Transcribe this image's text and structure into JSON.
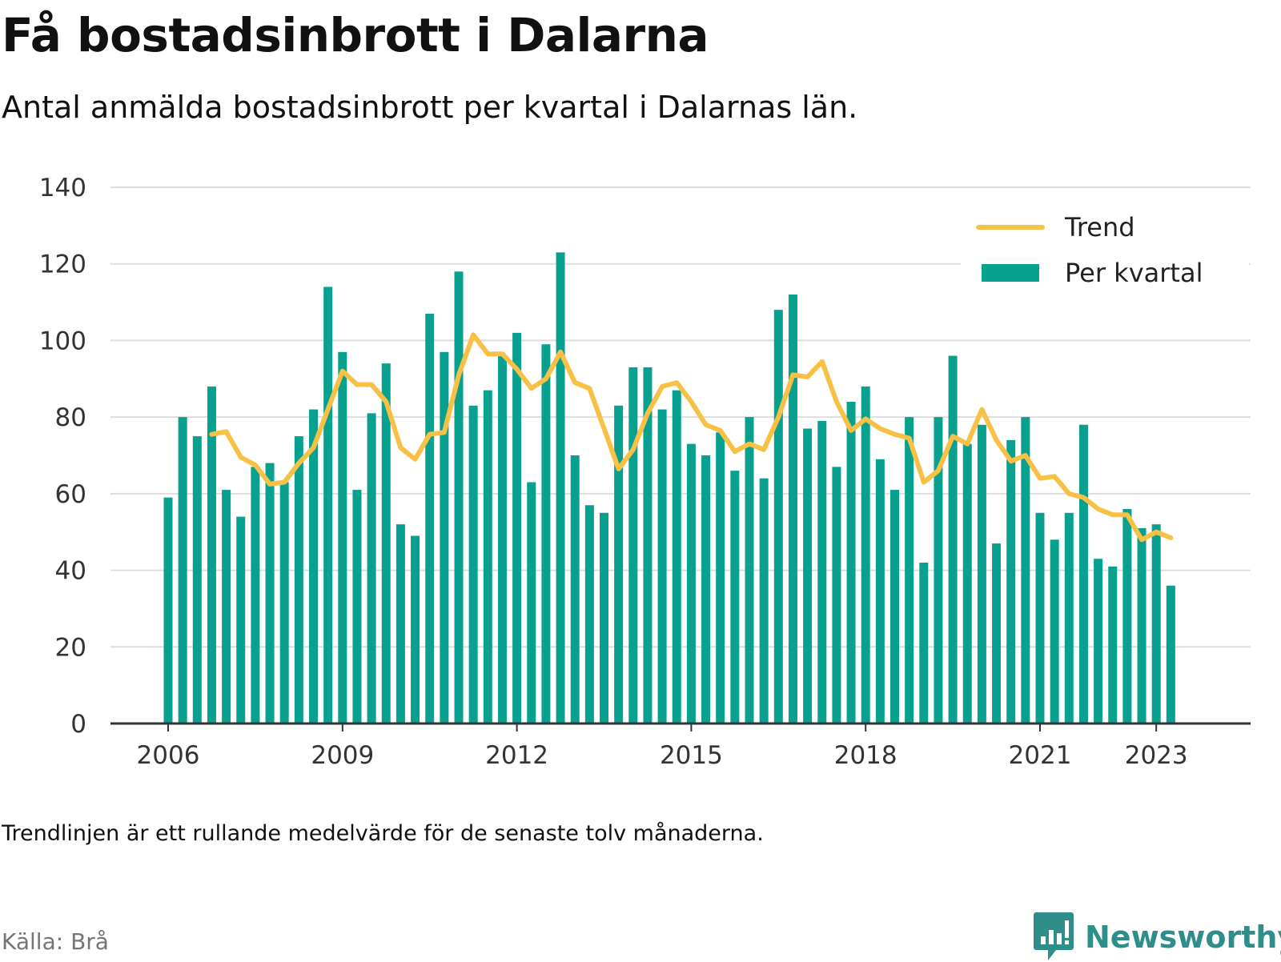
{
  "title": "Få bostadsinbrott i Dalarna",
  "subtitle": "Antal anmälda bostadsinbrott per kvartal i Dalarnas län.",
  "note": "Trendlinjen är ett rullande medelvärde för de senaste tolv månaderna.",
  "source": "Källa: Brå",
  "brand": {
    "name": "Newsworthy",
    "icon": "newsworthy-logo-icon",
    "color": "#2e8e8a"
  },
  "colors": {
    "bars": "#08a08e",
    "trend": "#f8c146",
    "grid": "#dddddd",
    "axis": "#333333"
  },
  "chart_data": {
    "type": "bar",
    "title": "Få bostadsinbrott i Dalarna",
    "subtitle": "Antal anmälda bostadsinbrott per kvartal i Dalarnas län.",
    "xlabel": "",
    "ylabel": "",
    "ylim": [
      0,
      140
    ],
    "yticks": [
      "0",
      "20",
      "40",
      "60",
      "80",
      "100",
      "120",
      "140"
    ],
    "xticks": [
      "2006",
      "2009",
      "2012",
      "2015",
      "2018",
      "2021",
      "2023"
    ],
    "grid": true,
    "legend": {
      "placement": "top-right",
      "entries": [
        "Trend",
        "Per kvartal"
      ]
    },
    "categories": [
      "2006 Q1",
      "2006 Q2",
      "2006 Q3",
      "2006 Q4",
      "2007 Q1",
      "2007 Q2",
      "2007 Q3",
      "2007 Q4",
      "2008 Q1",
      "2008 Q2",
      "2008 Q3",
      "2008 Q4",
      "2009 Q1",
      "2009 Q2",
      "2009 Q3",
      "2009 Q4",
      "2010 Q1",
      "2010 Q2",
      "2010 Q3",
      "2010 Q4",
      "2011 Q1",
      "2011 Q2",
      "2011 Q3",
      "2011 Q4",
      "2012 Q1",
      "2012 Q2",
      "2012 Q3",
      "2012 Q4",
      "2013 Q1",
      "2013 Q2",
      "2013 Q3",
      "2013 Q4",
      "2014 Q1",
      "2014 Q2",
      "2014 Q3",
      "2014 Q4",
      "2015 Q1",
      "2015 Q2",
      "2015 Q3",
      "2015 Q4",
      "2016 Q1",
      "2016 Q2",
      "2016 Q3",
      "2016 Q4",
      "2017 Q1",
      "2017 Q2",
      "2017 Q3",
      "2017 Q4",
      "2018 Q1",
      "2018 Q2",
      "2018 Q3",
      "2018 Q4",
      "2019 Q1",
      "2019 Q2",
      "2019 Q3",
      "2019 Q4",
      "2020 Q1",
      "2020 Q2",
      "2020 Q3",
      "2020 Q4",
      "2021 Q1",
      "2021 Q2",
      "2021 Q3",
      "2021 Q4",
      "2022 Q1",
      "2022 Q2",
      "2022 Q3",
      "2022 Q4",
      "2023 Q1",
      "2023 Q2"
    ],
    "series": [
      {
        "name": "Per kvartal",
        "type": "bar",
        "values": [
          59,
          80,
          75,
          88,
          61,
          54,
          67,
          68,
          63,
          75,
          82,
          114,
          97,
          61,
          81,
          94,
          52,
          49,
          107,
          97,
          118,
          83,
          87,
          96,
          102,
          63,
          99,
          123,
          70,
          57,
          55,
          83,
          93,
          93,
          82,
          87,
          73,
          70,
          76,
          66,
          80,
          64,
          108,
          112,
          77,
          79,
          67,
          84,
          88,
          69,
          61,
          80,
          42,
          80,
          96,
          73,
          78,
          47,
          74,
          80,
          55,
          48,
          55,
          78,
          43,
          41,
          56,
          51,
          52,
          36
        ]
      },
      {
        "name": "Trend",
        "type": "line",
        "values": [
          null,
          null,
          null,
          75.5,
          76.2,
          69.5,
          67.5,
          62.5,
          63,
          68,
          72,
          82,
          92,
          88.5,
          88.5,
          84,
          72,
          69,
          75.5,
          76,
          91,
          101.5,
          96.5,
          96.5,
          92.5,
          87.5,
          90,
          97,
          89,
          87.5,
          77,
          66.5,
          71.5,
          81,
          88,
          89,
          84,
          78,
          76.5,
          71,
          73,
          71.5,
          80,
          91,
          90.5,
          94.5,
          84,
          76.5,
          79.5,
          77,
          75.5,
          74.5,
          63,
          66,
          75,
          73,
          82,
          74,
          68.5,
          70,
          64,
          64.5,
          60,
          59,
          56,
          54.5,
          54.5,
          48,
          50,
          48.5
        ]
      }
    ]
  }
}
